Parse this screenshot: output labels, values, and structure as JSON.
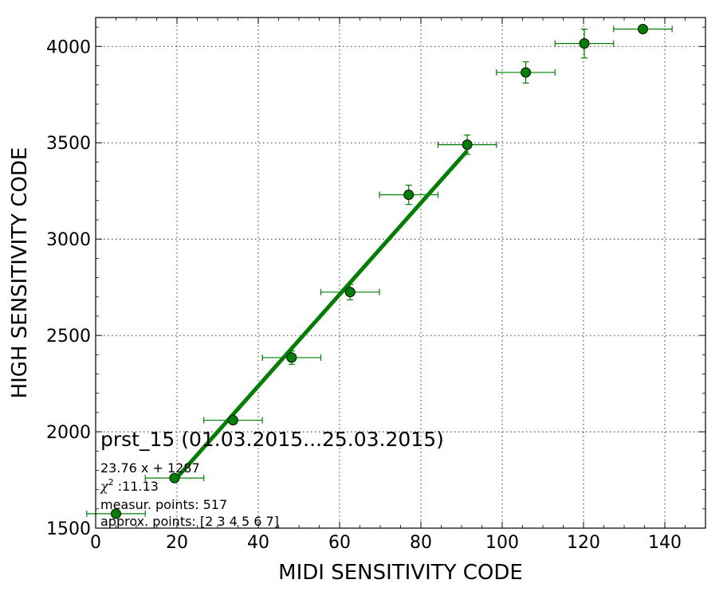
{
  "chart_data": {
    "type": "scatter",
    "xlabel": "MIDI SENSITIVITY CODE",
    "ylabel": "HIGH SENSITIVITY CODE",
    "xlim": [
      0,
      150
    ],
    "ylim": [
      1500,
      4150
    ],
    "xticks": [
      0,
      20,
      40,
      60,
      80,
      100,
      120,
      140
    ],
    "yticks": [
      1500,
      2000,
      2500,
      3000,
      3500,
      4000
    ],
    "grid": true,
    "series": [
      {
        "points": [
          {
            "x": 5,
            "y": 1575,
            "xerr": 7.2,
            "yerr": 0
          },
          {
            "x": 19.4,
            "y": 1760,
            "xerr": 7.2,
            "yerr": 0
          },
          {
            "x": 33.8,
            "y": 2060,
            "xerr": 7.2,
            "yerr": 0
          },
          {
            "x": 48.2,
            "y": 2385,
            "xerr": 7.2,
            "yerr": 35
          },
          {
            "x": 62.6,
            "y": 2725,
            "xerr": 7.2,
            "yerr": 40
          },
          {
            "x": 77,
            "y": 3230,
            "xerr": 7.2,
            "yerr": 50
          },
          {
            "x": 91.4,
            "y": 3490,
            "xerr": 7.2,
            "yerr": 50
          },
          {
            "x": 105.8,
            "y": 3865,
            "xerr": 7.2,
            "yerr": 55
          },
          {
            "x": 120.2,
            "y": 4015,
            "xerr": 7.2,
            "yerr": 75
          },
          {
            "x": 134.6,
            "y": 4090,
            "xerr": 7.2,
            "yerr": 0
          }
        ]
      }
    ],
    "fit_line": {
      "slope": 23.76,
      "intercept": 1287,
      "x_range": [
        19.4,
        91.4
      ]
    },
    "colors": {
      "marker": "#008000",
      "fit": "#007f00",
      "grid": "#000000"
    },
    "annotations": {
      "title": "prst_15 (01.03.2015...25.03.2015)",
      "equation": "23.76 x + 1287",
      "chi_label": "χ",
      "chi_exp": "2",
      "chi_value": " :11.13",
      "measur": "measur. points: 517",
      "approx": "approx. points: [2 3 4 5 6 7]"
    }
  }
}
